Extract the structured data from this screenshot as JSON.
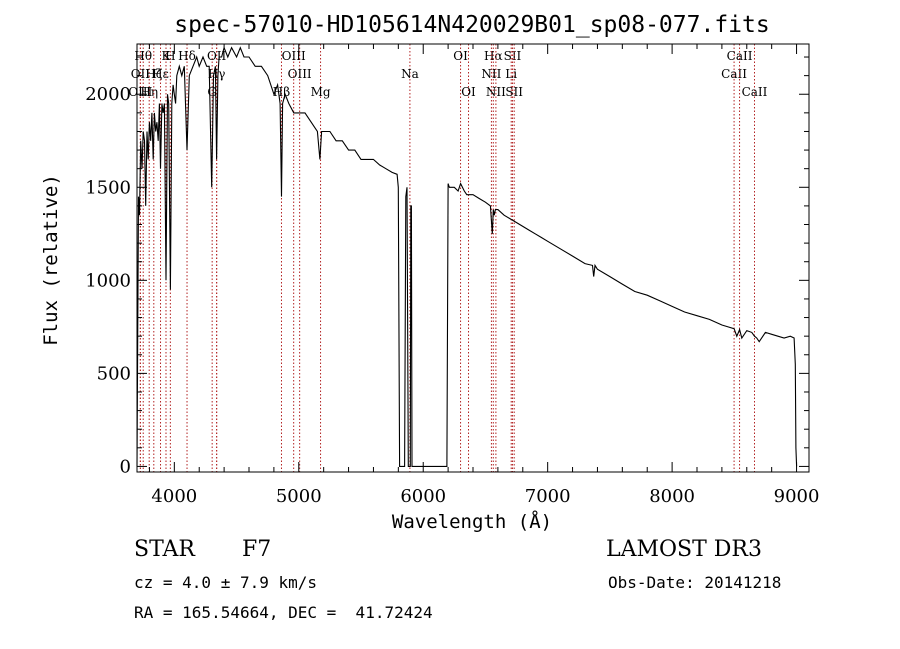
{
  "chart_data": {
    "type": "line",
    "title": "spec-57010-HD105614N420029B01_sp08-077.fits",
    "xlabel": "Wavelength (Å)",
    "ylabel": "Flux (relative)",
    "xlim": [
      3700,
      9100
    ],
    "ylim": [
      -30,
      2270
    ],
    "xticks": [
      4000,
      5000,
      6000,
      7000,
      8000,
      9000
    ],
    "yticks": [
      0,
      500,
      1000,
      1500,
      2000
    ],
    "series": [
      {
        "name": "flux",
        "x": [
          3700,
          3705,
          3712,
          3720,
          3730,
          3740,
          3750,
          3760,
          3770,
          3780,
          3790,
          3800,
          3810,
          3820,
          3830,
          3840,
          3850,
          3860,
          3870,
          3880,
          3889,
          3900,
          3910,
          3920,
          3933,
          3945,
          3955,
          3968,
          3980,
          3990,
          4000,
          4010,
          4020,
          4040,
          4060,
          4080,
          4102,
          4120,
          4150,
          4180,
          4200,
          4230,
          4260,
          4280,
          4300,
          4315,
          4330,
          4340,
          4350,
          4360,
          4380,
          4400,
          4430,
          4460,
          4500,
          4530,
          4560,
          4600,
          4650,
          4700,
          4750,
          4800,
          4830,
          4850,
          4861,
          4870,
          4890,
          4920,
          4960,
          5000,
          5050,
          5100,
          5150,
          5170,
          5183,
          5200,
          5250,
          5300,
          5350,
          5400,
          5450,
          5500,
          5550,
          5600,
          5650,
          5700,
          5750,
          5790,
          5800,
          5810,
          5830,
          5850,
          5860,
          5870,
          5880,
          5890,
          5896,
          5900,
          5905,
          5910,
          5915,
          5925,
          5935,
          6190,
          6200,
          6205,
          6210,
          6250,
          6280,
          6300,
          6330,
          6350,
          6400,
          6450,
          6500,
          6540,
          6555,
          6563,
          6570,
          6580,
          6600,
          6650,
          6700,
          6750,
          6800,
          6850,
          6900,
          6950,
          7000,
          7100,
          7200,
          7300,
          7360,
          7370,
          7380,
          7400,
          7500,
          7600,
          7700,
          7800,
          7900,
          8000,
          8100,
          8200,
          8300,
          8400,
          8450,
          8498,
          8520,
          8542,
          8560,
          8600,
          8640,
          8662,
          8680,
          8700,
          8750,
          8800,
          8850,
          8900,
          8950,
          8980,
          8990,
          8995,
          9000
        ],
        "y": [
          0,
          600,
          1450,
          1350,
          1750,
          1600,
          1800,
          1750,
          1400,
          1800,
          1650,
          1850,
          1750,
          1900,
          1650,
          1900,
          1800,
          1850,
          1750,
          1950,
          1600,
          1950,
          1900,
          1950,
          1000,
          2000,
          1950,
          950,
          1950,
          2050,
          2000,
          1950,
          2100,
          2150,
          2100,
          2150,
          1700,
          2100,
          2150,
          2200,
          2150,
          2200,
          2150,
          2150,
          1500,
          2100,
          2150,
          1650,
          2100,
          2200,
          2200,
          2250,
          2200,
          2250,
          2200,
          2250,
          2200,
          2200,
          2150,
          2150,
          2100,
          2000,
          2050,
          1950,
          1450,
          1950,
          2000,
          1950,
          1900,
          1900,
          1900,
          1850,
          1800,
          1650,
          1800,
          1800,
          1800,
          1750,
          1750,
          1700,
          1700,
          1650,
          1650,
          1650,
          1620,
          1600,
          1580,
          1570,
          1500,
          0,
          0,
          0,
          1450,
          1500,
          0,
          0,
          0,
          1400,
          1400,
          0,
          0,
          0,
          0,
          0,
          1520,
          1510,
          1500,
          1500,
          1480,
          1520,
          1480,
          1460,
          1460,
          1440,
          1420,
          1400,
          1250,
          1380,
          1350,
          1380,
          1380,
          1350,
          1330,
          1310,
          1290,
          1270,
          1250,
          1230,
          1210,
          1170,
          1130,
          1090,
          1080,
          1020,
          1080,
          1060,
          1020,
          980,
          940,
          920,
          890,
          860,
          830,
          810,
          790,
          760,
          750,
          740,
          700,
          735,
          690,
          730,
          720,
          700,
          690,
          670,
          720,
          710,
          700,
          690,
          700,
          690,
          550,
          100,
          0
        ]
      }
    ],
    "lines": [
      {
        "label": "Hθ",
        "x": 3750,
        "row": 0
      },
      {
        "label": "OII",
        "x": 3727,
        "row": 1
      },
      {
        "label": "OIII",
        "x": 3727,
        "row": 2
      },
      {
        "label": "Hη",
        "x": 3798,
        "row": 2
      },
      {
        "label": "Hζ",
        "x": 3835,
        "row": 1
      },
      {
        "label": "Hε",
        "x": 3889,
        "row": 1
      },
      {
        "label": "K",
        "x": 3933,
        "row": 0
      },
      {
        "label": "H",
        "x": 3968,
        "row": 0
      },
      {
        "label": "Hδ",
        "x": 4102,
        "row": 0
      },
      {
        "label": "G",
        "x": 4304,
        "row": 2
      },
      {
        "label": "OII",
        "x": 4340,
        "row": 0
      },
      {
        "label": "Hγ",
        "x": 4340,
        "row": 1
      },
      {
        "label": "Hβ",
        "x": 4861,
        "row": 2
      },
      {
        "label": "OIII",
        "x": 4959,
        "row": 0
      },
      {
        "label": "OIII",
        "x": 5007,
        "row": 1
      },
      {
        "label": "Mg",
        "x": 5175,
        "row": 2
      },
      {
        "label": "Na",
        "x": 5893,
        "row": 1
      },
      {
        "label": "OI",
        "x": 6300,
        "row": 0
      },
      {
        "label": "OI",
        "x": 6364,
        "row": 2
      },
      {
        "label": "Hα",
        "x": 6563,
        "row": 0
      },
      {
        "label": "NII",
        "x": 6548,
        "row": 1
      },
      {
        "label": "NII",
        "x": 6584,
        "row": 2
      },
      {
        "label": "SII",
        "x": 6717,
        "row": 0
      },
      {
        "label": "Li",
        "x": 6707,
        "row": 1
      },
      {
        "label": "SII",
        "x": 6731,
        "row": 2
      },
      {
        "label": "CaII",
        "x": 8498,
        "row": 1
      },
      {
        "label": "CaII",
        "x": 8542,
        "row": 0
      },
      {
        "label": "CaII",
        "x": 8662,
        "row": 2
      }
    ]
  },
  "info": {
    "object_class": "STAR",
    "subclass": "F7",
    "survey": "LAMOST DR3",
    "velocity": "cz = 4.0 ± 7.9 km/s",
    "obs_date": "Obs-Date: 20141218",
    "coords": "RA = 165.54664, DEC =  41.72424"
  },
  "colors": {
    "line_marker": "#b22222",
    "spectrum": "#000000"
  }
}
